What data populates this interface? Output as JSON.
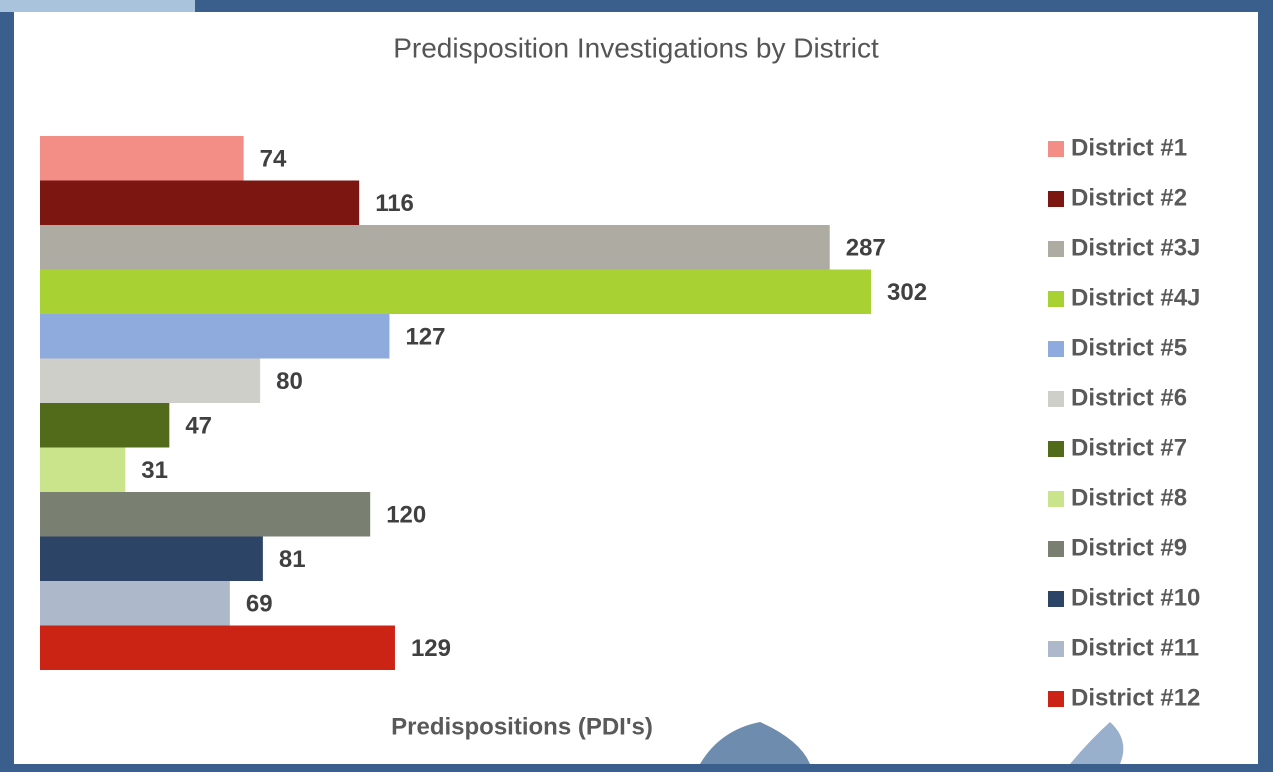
{
  "chart_data": {
    "type": "bar",
    "title": "Predisposition Investigations by District",
    "x_label": "Predispositions (PDI's)",
    "series": [
      {
        "name": "District #1",
        "color": "#f28e86",
        "values": [
          74
        ]
      },
      {
        "name": "District #2",
        "color": "#7b1710",
        "values": [
          116
        ]
      },
      {
        "name": "District #3J",
        "color": "#aeaba3",
        "values": [
          287
        ]
      },
      {
        "name": "District #4J",
        "color": "#a8d234",
        "values": [
          302
        ]
      },
      {
        "name": "District #5",
        "color": "#8faadc",
        "values": [
          127
        ]
      },
      {
        "name": "District #6",
        "color": "#cfcfca",
        "values": [
          80
        ]
      },
      {
        "name": "District #7",
        "color": "#526b1b",
        "values": [
          47
        ]
      },
      {
        "name": "District #8",
        "color": "#c9e48a",
        "values": [
          31
        ]
      },
      {
        "name": "District #9",
        "color": "#7a8071",
        "values": [
          120
        ]
      },
      {
        "name": "District #10",
        "color": "#2c4566",
        "values": [
          81
        ]
      },
      {
        "name": "District #11",
        "color": "#aeb8cb",
        "values": [
          69
        ]
      },
      {
        "name": "District #12",
        "color": "#cc2414",
        "values": [
          129
        ]
      }
    ]
  }
}
